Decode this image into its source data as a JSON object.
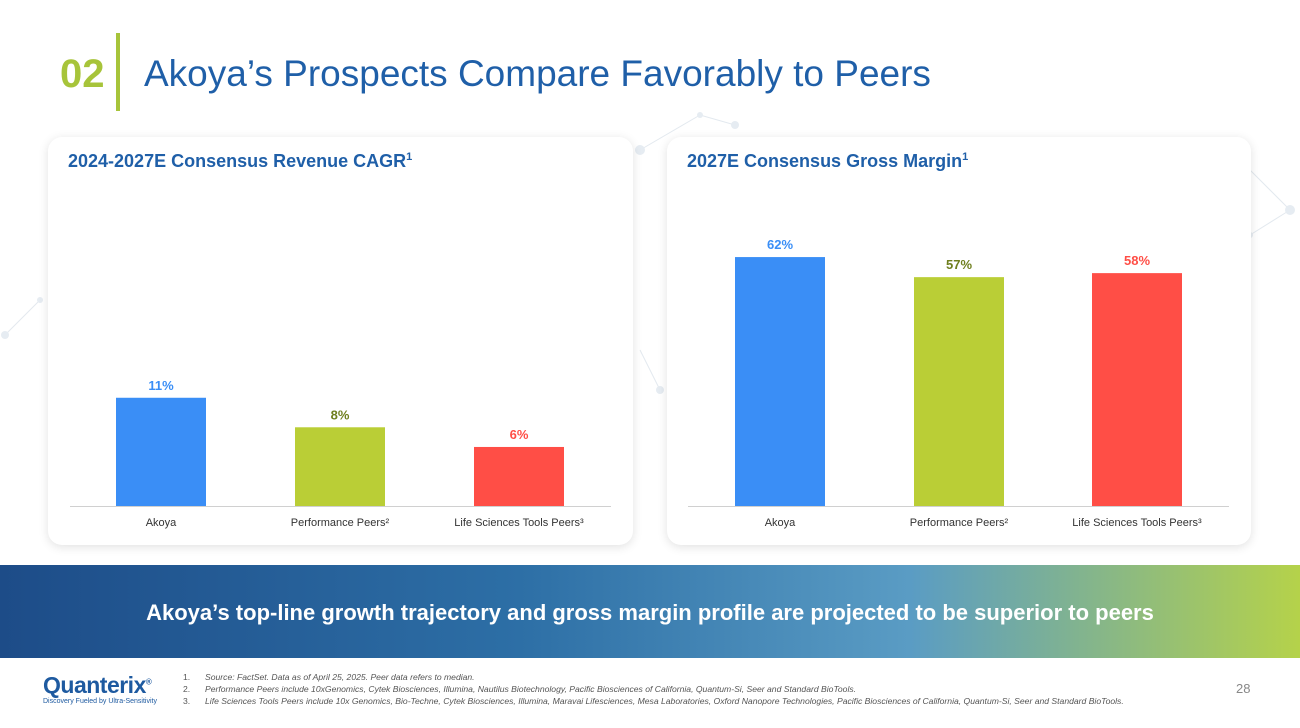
{
  "header": {
    "number": "02",
    "title": "Akoya’s Prospects Compare Favorably to Peers"
  },
  "colors": {
    "akoya": "#3a8ef6",
    "performance": "#bace36",
    "life_sciences": "#ff4e46",
    "title_blue": "#1f5fa8",
    "accent_green": "#a7c43a"
  },
  "chart_data": [
    {
      "type": "bar",
      "title": "2024-2027E Consensus Revenue CAGR",
      "title_sup": "1",
      "categories": [
        "Akoya",
        "Performance Peers²",
        "Life Sciences Tools Peers³"
      ],
      "values": [
        11,
        8,
        6
      ],
      "labels": [
        "11%",
        "8%",
        "6%"
      ],
      "label_colors": [
        "#3a8ef6",
        "#6f7f1e",
        "#ff4e46"
      ],
      "ylim": [
        0,
        25
      ]
    },
    {
      "type": "bar",
      "title": "2027E Consensus Gross Margin",
      "title_sup": "1",
      "categories": [
        "Akoya",
        "Performance Peers²",
        "Life Sciences Tools Peers³"
      ],
      "values": [
        62,
        57,
        58
      ],
      "labels": [
        "62%",
        "57%",
        "58%"
      ],
      "label_colors": [
        "#3a8ef6",
        "#6f7f1e",
        "#ff4e46"
      ],
      "ylim": [
        0,
        66.5
      ]
    }
  ],
  "banner": "Akoya’s top-line growth trajectory and gross margin profile are projected to be superior to peers",
  "logo": {
    "name": "Quanterix",
    "tm": "®",
    "tagline": "Discovery Fueled by Ultra-Sensitivity"
  },
  "footnotes": [
    {
      "num": "1.",
      "text": "Source: FactSet. Data as of April 25, 2025. Peer data refers to median."
    },
    {
      "num": "2.",
      "text": "Performance Peers include 10xGenomics, Cytek Biosciences, Illumina, Nautilus Biotechnology, Pacific Biosciences of California, Quantum-Si, Seer and Standard BioTools."
    },
    {
      "num": "3.",
      "text": "Life Sciences Tools Peers include 10x Genomics, Bio-Techne, Cytek Biosciences, Illumina, Maravai Lifesciences, Mesa Laboratories, Oxford Nanopore Technologies, Pacific Biosciences of California, Quantum-Si, Seer and Standard BioTools."
    }
  ],
  "page_number": "28"
}
